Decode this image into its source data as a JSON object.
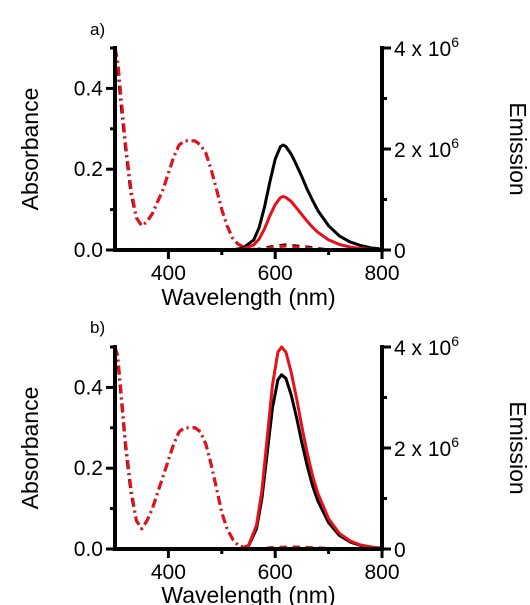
{
  "chart_data": [
    {
      "type": "line",
      "panel_label": "a)",
      "xlabel": "Wavelength (nm)",
      "ylabel": "Absorbance",
      "y2label": "Emission",
      "xlim": [
        300,
        800
      ],
      "ylim": [
        0,
        0.5
      ],
      "y2lim": [
        0,
        4000000
      ],
      "xticks": [
        "400",
        "600",
        "800"
      ],
      "yticks": [
        "0.0",
        "0.2",
        "0.4"
      ],
      "y2ticks": [
        {
          "base": "0",
          "exp": ""
        },
        {
          "base": "2 x 10",
          "exp": "6"
        },
        {
          "base": "4 x 10",
          "exp": "6"
        }
      ],
      "colors": {
        "black": "#000000",
        "red": "#e8101a"
      },
      "series": [
        {
          "axis": "left",
          "style": "dashdot",
          "color": "black",
          "x": [
            300,
            305,
            310,
            320,
            330,
            340,
            350,
            360,
            370,
            380,
            390,
            400,
            410,
            420,
            430,
            440,
            450,
            460,
            470,
            480,
            490,
            500,
            510,
            520,
            530,
            540,
            550,
            560,
            570
          ],
          "y": [
            0.5,
            0.46,
            0.38,
            0.25,
            0.14,
            0.08,
            0.06,
            0.07,
            0.09,
            0.12,
            0.15,
            0.19,
            0.23,
            0.26,
            0.27,
            0.27,
            0.27,
            0.26,
            0.24,
            0.2,
            0.15,
            0.1,
            0.06,
            0.03,
            0.015,
            0.008,
            0.004,
            0.002,
            0
          ]
        },
        {
          "axis": "left",
          "style": "dashdot",
          "color": "red",
          "x": [
            300,
            305,
            310,
            320,
            330,
            340,
            350,
            360,
            370,
            380,
            390,
            400,
            410,
            420,
            430,
            440,
            450,
            460,
            470,
            480,
            490,
            500,
            510,
            520,
            530,
            540,
            550,
            560,
            570
          ],
          "y": [
            0.5,
            0.47,
            0.4,
            0.26,
            0.15,
            0.08,
            0.06,
            0.07,
            0.09,
            0.12,
            0.15,
            0.19,
            0.23,
            0.26,
            0.27,
            0.27,
            0.27,
            0.26,
            0.24,
            0.2,
            0.15,
            0.1,
            0.06,
            0.03,
            0.015,
            0.008,
            0.004,
            0.002,
            0
          ]
        },
        {
          "axis": "right",
          "style": "solid",
          "color": "black",
          "x": [
            520,
            540,
            560,
            570,
            580,
            590,
            600,
            610,
            615,
            620,
            630,
            640,
            650,
            660,
            670,
            680,
            700,
            720,
            740,
            760,
            780,
            800
          ],
          "y": [
            0,
            40000,
            200000,
            450000,
            850000,
            1350000,
            1800000,
            2050000,
            2080000,
            2050000,
            1900000,
            1680000,
            1450000,
            1200000,
            980000,
            780000,
            480000,
            280000,
            160000,
            90000,
            40000,
            20000
          ]
        },
        {
          "axis": "right",
          "style": "solid",
          "color": "red",
          "x": [
            520,
            540,
            560,
            570,
            580,
            590,
            600,
            610,
            615,
            620,
            630,
            640,
            650,
            660,
            670,
            680,
            700,
            720,
            740,
            760,
            780,
            800
          ],
          "y": [
            0,
            20000,
            100000,
            220000,
            420000,
            680000,
            900000,
            1040000,
            1060000,
            1040000,
            960000,
            830000,
            700000,
            570000,
            450000,
            350000,
            200000,
            110000,
            60000,
            30000,
            15000,
            8000
          ]
        },
        {
          "axis": "right",
          "style": "dashed",
          "color": "black",
          "x": [
            560,
            580,
            600,
            620,
            640,
            660,
            680,
            700
          ],
          "y": [
            0,
            40000,
            80000,
            100000,
            80000,
            60000,
            30000,
            0
          ]
        },
        {
          "axis": "right",
          "style": "dashed",
          "color": "red",
          "x": [
            560,
            580,
            600,
            620,
            640,
            660,
            680,
            700
          ],
          "y": [
            0,
            30000,
            60000,
            80000,
            60000,
            40000,
            20000,
            0
          ]
        }
      ]
    },
    {
      "type": "line",
      "panel_label": "b)",
      "xlabel": "Wavelength (nm)",
      "ylabel": "Absorbance",
      "y2label": "Emission",
      "xlim": [
        300,
        800
      ],
      "ylim": [
        0,
        0.5
      ],
      "y2lim": [
        0,
        4000000
      ],
      "xticks": [
        "400",
        "600",
        "800"
      ],
      "yticks": [
        "0.0",
        "0.2",
        "0.4"
      ],
      "y2ticks": [
        {
          "base": "0",
          "exp": ""
        },
        {
          "base": "2 x 10",
          "exp": "6"
        },
        {
          "base": "4 x 10",
          "exp": "6"
        }
      ],
      "colors": {
        "black": "#000000",
        "red": "#e8101a"
      },
      "series": [
        {
          "axis": "left",
          "style": "dashdot",
          "color": "black",
          "x": [
            300,
            305,
            310,
            320,
            330,
            340,
            350,
            360,
            370,
            380,
            390,
            400,
            410,
            420,
            430,
            440,
            450,
            460,
            470,
            480,
            490,
            500,
            510,
            520,
            530,
            540,
            550,
            560
          ],
          "y": [
            0.5,
            0.47,
            0.4,
            0.25,
            0.14,
            0.07,
            0.05,
            0.07,
            0.1,
            0.14,
            0.18,
            0.22,
            0.26,
            0.29,
            0.3,
            0.3,
            0.3,
            0.29,
            0.26,
            0.21,
            0.15,
            0.09,
            0.05,
            0.025,
            0.01,
            0.005,
            0.002,
            0
          ]
        },
        {
          "axis": "left",
          "style": "dashdot",
          "color": "red",
          "x": [
            300,
            305,
            310,
            320,
            330,
            340,
            350,
            360,
            370,
            380,
            390,
            400,
            410,
            420,
            430,
            440,
            450,
            460,
            470,
            480,
            490,
            500,
            510,
            520,
            530,
            540,
            550,
            560
          ],
          "y": [
            0.5,
            0.48,
            0.41,
            0.26,
            0.15,
            0.07,
            0.05,
            0.07,
            0.1,
            0.14,
            0.18,
            0.22,
            0.26,
            0.29,
            0.3,
            0.3,
            0.3,
            0.29,
            0.26,
            0.21,
            0.15,
            0.09,
            0.05,
            0.025,
            0.01,
            0.005,
            0.002,
            0
          ]
        },
        {
          "axis": "right",
          "style": "solid",
          "color": "black",
          "x": [
            530,
            550,
            565,
            575,
            585,
            595,
            605,
            612,
            620,
            630,
            640,
            650,
            660,
            670,
            680,
            700,
            720,
            740,
            760,
            780,
            800
          ],
          "y": [
            0,
            60000,
            400000,
            1000000,
            1900000,
            2800000,
            3350000,
            3450000,
            3380000,
            3050000,
            2600000,
            2100000,
            1650000,
            1250000,
            950000,
            520000,
            270000,
            140000,
            70000,
            35000,
            15000
          ]
        },
        {
          "axis": "right",
          "style": "solid",
          "color": "red",
          "x": [
            530,
            550,
            565,
            575,
            585,
            595,
            605,
            612,
            620,
            630,
            640,
            650,
            660,
            670,
            680,
            700,
            720,
            740,
            760,
            780,
            800
          ],
          "y": [
            0,
            70000,
            470000,
            1150000,
            2200000,
            3250000,
            3900000,
            4000000,
            3900000,
            3500000,
            2980000,
            2420000,
            1900000,
            1450000,
            1100000,
            600000,
            310000,
            160000,
            80000,
            40000,
            18000
          ]
        },
        {
          "axis": "right",
          "style": "dashed",
          "color": "black",
          "x": [
            560,
            600,
            640,
            680,
            720
          ],
          "y": [
            0,
            30000,
            40000,
            20000,
            0
          ]
        },
        {
          "axis": "right",
          "style": "dashed",
          "color": "red",
          "x": [
            560,
            600,
            640,
            680,
            720
          ],
          "y": [
            0,
            30000,
            40000,
            20000,
            0
          ]
        }
      ]
    }
  ]
}
